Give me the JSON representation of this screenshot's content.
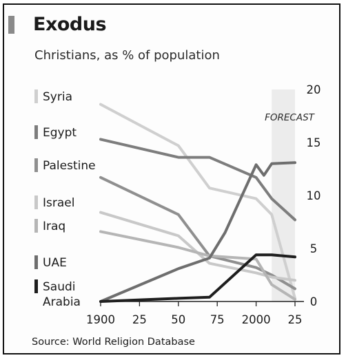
{
  "chart_data": {
    "type": "line",
    "title": "Exodus",
    "subtitle": "Christians, as % of population",
    "source": "Source: World Religion Database",
    "forecast_label": "FORECAST",
    "forecast_range": [
      2010,
      2025
    ],
    "xlim": [
      1900,
      2025
    ],
    "ylim": [
      0,
      20
    ],
    "x_ticks": [
      1900,
      1925,
      1950,
      1975,
      2000,
      2025
    ],
    "x_tick_labels": [
      "1900",
      "25",
      "50",
      "75",
      "2000",
      "25"
    ],
    "y_ticks": [
      0,
      5,
      10,
      15,
      20
    ],
    "y_tick_labels": [
      "0",
      "5",
      "10",
      "15",
      "20"
    ],
    "y_axis_position": "right",
    "legend_position": "left",
    "grid": false,
    "series": [
      {
        "name": "Syria",
        "color": "#cfcfcf",
        "x": [
          1900,
          1950,
          1970,
          2000,
          2010,
          2025
        ],
        "y": [
          18.6,
          14.7,
          10.7,
          9.7,
          8.2,
          0.3
        ]
      },
      {
        "name": "Egypt",
        "color": "#7d7d7d",
        "x": [
          1900,
          1950,
          1970,
          2000,
          2010,
          2025
        ],
        "y": [
          15.3,
          13.6,
          13.6,
          11.7,
          9.7,
          7.7
        ]
      },
      {
        "name": "Palestine",
        "color": "#8f8f8f",
        "x": [
          1900,
          1950,
          1970,
          2000,
          2010,
          2025
        ],
        "y": [
          11.7,
          8.2,
          4.3,
          3.2,
          2.5,
          1.2
        ]
      },
      {
        "name": "Israel",
        "color": "#c8c8c8",
        "x": [
          1900,
          1950,
          1970,
          2000,
          2010,
          2025
        ],
        "y": [
          8.4,
          6.2,
          3.6,
          2.7,
          2.3,
          2.0
        ]
      },
      {
        "name": "Iraq",
        "color": "#b5b5b5",
        "x": [
          1900,
          1950,
          1970,
          2000,
          2010,
          2025
        ],
        "y": [
          6.6,
          5.1,
          4.3,
          4.0,
          1.6,
          0.2
        ]
      },
      {
        "name": "UAE",
        "color": "#6e6e6e",
        "x": [
          1900,
          1950,
          1970,
          1980,
          2000,
          2005,
          2010,
          2025
        ],
        "y": [
          0,
          3.1,
          4.1,
          6.5,
          12.9,
          11.9,
          13.0,
          13.1
        ]
      },
      {
        "name": "Saudi Arabia",
        "color": "#1e1e1e",
        "x": [
          1900,
          1950,
          1970,
          2000,
          2010,
          2025
        ],
        "y": [
          0,
          0.3,
          0.4,
          4.4,
          4.4,
          4.2
        ]
      }
    ]
  }
}
